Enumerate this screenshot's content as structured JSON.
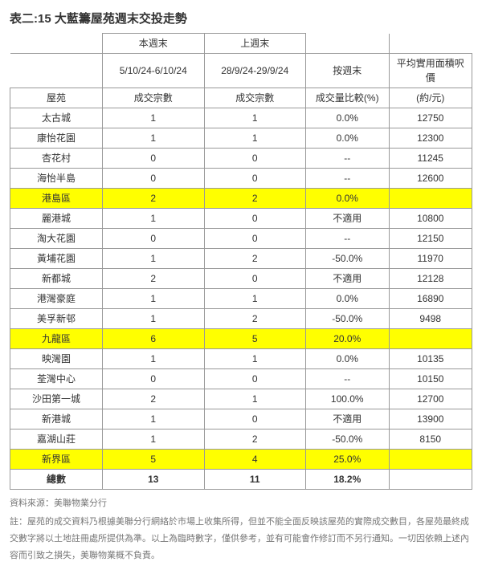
{
  "title": "表二:15 大藍籌屋苑週末交投走勢",
  "header": {
    "r1": {
      "c0": "",
      "c1": "本週末",
      "c2": "上週末",
      "c3": "",
      "c4": ""
    },
    "r2": {
      "c0": "",
      "c1": "5/10/24-6/10/24",
      "c2": "28/9/24-29/9/24",
      "c3": "按週末",
      "c4": "平均實用面積呎價"
    },
    "r3": {
      "c0": "屋苑",
      "c1": "成交宗數",
      "c2": "成交宗數",
      "c3": "成交量比較(%)",
      "c4": "(約/元)"
    }
  },
  "rows": [
    {
      "name": "太古城",
      "a": "1",
      "b": "1",
      "c": "0.0%",
      "d": "12750",
      "hl": false
    },
    {
      "name": "康怡花園",
      "a": "1",
      "b": "1",
      "c": "0.0%",
      "d": "12300",
      "hl": false
    },
    {
      "name": "杏花村",
      "a": "0",
      "b": "0",
      "c": "--",
      "d": "11245",
      "hl": false
    },
    {
      "name": "海怡半島",
      "a": "0",
      "b": "0",
      "c": "--",
      "d": "12600",
      "hl": false
    },
    {
      "name": "港島區",
      "a": "2",
      "b": "2",
      "c": "0.0%",
      "d": "",
      "hl": true
    },
    {
      "name": "麗港城",
      "a": "1",
      "b": "0",
      "c": "不適用",
      "d": "10800",
      "hl": false
    },
    {
      "name": "淘大花園",
      "a": "0",
      "b": "0",
      "c": "--",
      "d": "12150",
      "hl": false
    },
    {
      "name": "黃埔花園",
      "a": "1",
      "b": "2",
      "c": "-50.0%",
      "d": "11970",
      "hl": false
    },
    {
      "name": "新都城",
      "a": "2",
      "b": "0",
      "c": "不適用",
      "d": "12128",
      "hl": false
    },
    {
      "name": "港灣豪庭",
      "a": "1",
      "b": "1",
      "c": "0.0%",
      "d": "16890",
      "hl": false
    },
    {
      "name": "美孚新邨",
      "a": "1",
      "b": "2",
      "c": "-50.0%",
      "d": "9498",
      "hl": false
    },
    {
      "name": "九龍區",
      "a": "6",
      "b": "5",
      "c": "20.0%",
      "d": "",
      "hl": true
    },
    {
      "name": "映灣園",
      "a": "1",
      "b": "1",
      "c": "0.0%",
      "d": "10135",
      "hl": false
    },
    {
      "name": "荃灣中心",
      "a": "0",
      "b": "0",
      "c": "--",
      "d": "10150",
      "hl": false
    },
    {
      "name": "沙田第一城",
      "a": "2",
      "b": "1",
      "c": "100.0%",
      "d": "12700",
      "hl": false
    },
    {
      "name": "新港城",
      "a": "1",
      "b": "0",
      "c": "不適用",
      "d": "13900",
      "hl": false
    },
    {
      "name": "嘉湖山莊",
      "a": "1",
      "b": "2",
      "c": "-50.0%",
      "d": "8150",
      "hl": false
    },
    {
      "name": "新界區",
      "a": "5",
      "b": "4",
      "c": "25.0%",
      "d": "",
      "hl": true
    }
  ],
  "total": {
    "name": "總數",
    "a": "13",
    "b": "11",
    "c": "18.2%",
    "d": ""
  },
  "source": "資料來源：美聯物業分行",
  "note": "註：屋苑的成交資料乃根據美聯分行網絡於市場上收集所得，但並不能全面反映該屋苑的實際成交數目，各屋苑最終成交數字將以土地註冊處所提供為準。以上為臨時數字，僅供參考，並有可能會作修訂而不另行通知。一切因依賴上述內容而引致之損失，美聯物業概不負責。"
}
